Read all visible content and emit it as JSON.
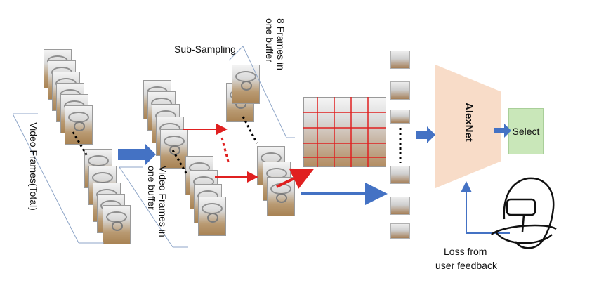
{
  "labels": {
    "video_frames_total": "Video Frames(Total)",
    "sub_sampling": "Sub-Sampling",
    "video_frames_buffer": "Video Frames in one buffer",
    "frames_in_buffer": "8 Frames in one buffer",
    "alexnet": "AlexNet",
    "select": "Select",
    "loss_line1": "Loss from",
    "loss_line2": "user feedback"
  },
  "icons": [
    "vr-headset-user-icon",
    "block-arrow-icon",
    "video-frame-stack-icon",
    "panorama-grid-icon"
  ],
  "colors": {
    "arrow_blue": "#4472c4",
    "arrow_red": "#e02020",
    "grid_red": "#e02020",
    "alexnet_fill": "#f8dcc8",
    "select_fill": "#c9e7b9",
    "brace": "#8fa6c8"
  }
}
